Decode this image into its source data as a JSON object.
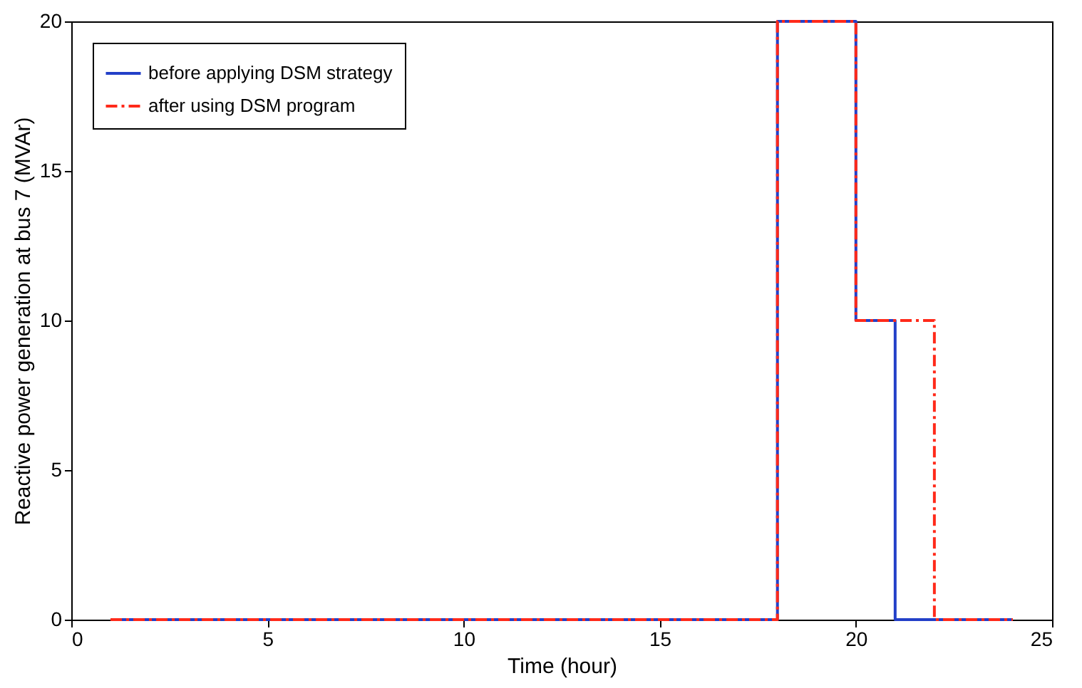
{
  "chart_data": {
    "type": "step",
    "xlabel": "Time (hour)",
    "ylabel": "Reactive power generation at bus 7 (MVAr)",
    "xlim": [
      0,
      25
    ],
    "xticks": [
      0,
      5,
      10,
      15,
      20,
      25
    ],
    "ylim": [
      0,
      20
    ],
    "yticks": [
      0,
      5,
      10,
      15,
      20
    ],
    "grid": false,
    "legend": "top left",
    "marker": "none",
    "series": [
      {
        "name": "before applying DSM strategy",
        "color": "#2340c8",
        "line_style": "solid",
        "x": [
          1,
          18,
          20,
          21,
          24
        ],
        "values": [
          0,
          20,
          10,
          0,
          0
        ]
      },
      {
        "name": "after using DSM program",
        "color": "#ff2a1a",
        "line_style": "dashed",
        "x": [
          1,
          18,
          20,
          22,
          24
        ],
        "values": [
          0,
          20,
          10,
          0,
          0
        ]
      }
    ]
  }
}
